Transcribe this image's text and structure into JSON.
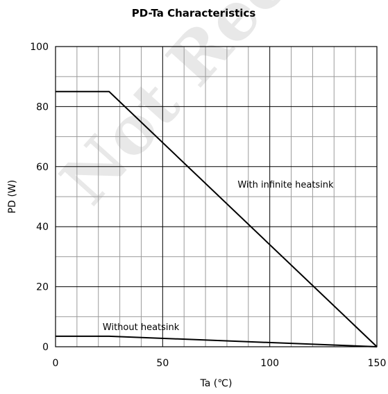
{
  "chart_data": {
    "type": "line",
    "title": "PD-Ta Characteristics",
    "xlabel": "Ta (℃)",
    "ylabel": "PD (W)",
    "xlim": [
      0,
      150
    ],
    "ylim": [
      0,
      100
    ],
    "x_ticks": [
      0,
      50,
      100,
      150
    ],
    "y_ticks": [
      0,
      20,
      40,
      60,
      80,
      100
    ],
    "x_minor_step": 10,
    "y_minor_step": 10,
    "grid": true,
    "series": [
      {
        "name": "With infinite heatsink",
        "x": [
          0,
          25,
          150
        ],
        "y": [
          85,
          85,
          0
        ]
      },
      {
        "name": "Without heatsink",
        "x": [
          0,
          25,
          150
        ],
        "y": [
          3.5,
          3.5,
          0
        ]
      }
    ],
    "annotations": [
      {
        "text": "With infinite heatsink",
        "x": 85,
        "y": 53
      },
      {
        "text": "Without heatsink",
        "x": 22,
        "y": 5.5
      }
    ],
    "watermark": "Not Recommended"
  }
}
